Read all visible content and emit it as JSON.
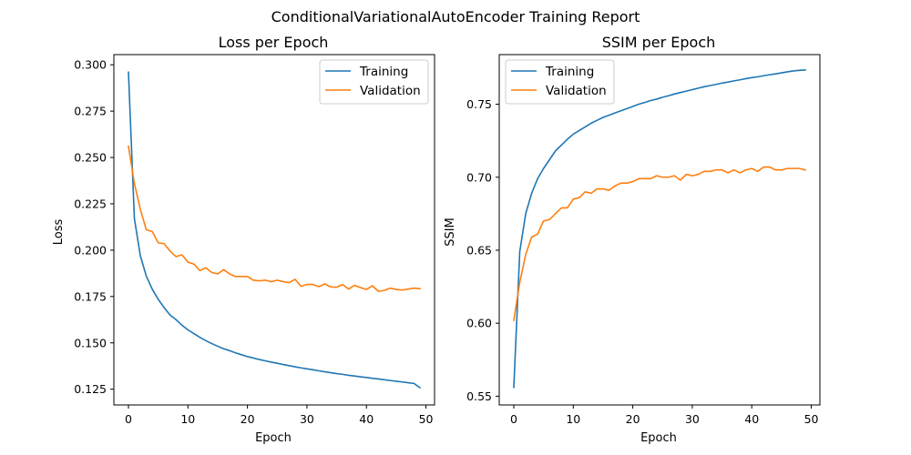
{
  "suptitle": "ConditionalVariationalAutoEncoder Training Report",
  "chart_data": [
    {
      "type": "line",
      "title": "Loss per Epoch",
      "xlabel": "Epoch",
      "ylabel": "Loss",
      "xlim": [
        -2.45,
        51.45
      ],
      "ylim": [
        0.1165,
        0.3055
      ],
      "xticks": [
        0,
        10,
        20,
        30,
        40,
        50
      ],
      "yticks": [
        0.125,
        0.15,
        0.175,
        0.2,
        0.225,
        0.25,
        0.275,
        0.3
      ],
      "ytick_labels": [
        "0.125",
        "0.150",
        "0.175",
        "0.200",
        "0.225",
        "0.250",
        "0.275",
        "0.300"
      ],
      "legend_position": "upper right",
      "x": [
        0,
        1,
        2,
        3,
        4,
        5,
        6,
        7,
        8,
        9,
        10,
        11,
        12,
        13,
        14,
        15,
        16,
        17,
        18,
        19,
        20,
        21,
        22,
        23,
        24,
        25,
        26,
        27,
        28,
        29,
        30,
        31,
        32,
        33,
        34,
        35,
        36,
        37,
        38,
        39,
        40,
        41,
        42,
        43,
        44,
        45,
        46,
        47,
        48,
        49
      ],
      "series": [
        {
          "name": "Training",
          "color": "#1f77b4",
          "values": [
            0.296,
            0.217,
            0.197,
            0.186,
            0.179,
            0.1735,
            0.169,
            0.165,
            0.1625,
            0.1595,
            0.157,
            0.155,
            0.153,
            0.1512,
            0.1496,
            0.1482,
            0.1468,
            0.1458,
            0.1446,
            0.1436,
            0.1426,
            0.1418,
            0.141,
            0.1403,
            0.1396,
            0.139,
            0.1383,
            0.1377,
            0.1371,
            0.1365,
            0.136,
            0.1355,
            0.1349,
            0.1344,
            0.1339,
            0.1334,
            0.133,
            0.1325,
            0.1321,
            0.1317,
            0.1313,
            0.1309,
            0.1305,
            0.1301,
            0.1297,
            0.1293,
            0.1289,
            0.1285,
            0.1281,
            0.1258
          ]
        },
        {
          "name": "Validation",
          "color": "#ff7f0e",
          "values": [
            0.256,
            0.236,
            0.222,
            0.211,
            0.21,
            0.204,
            0.2035,
            0.1995,
            0.1965,
            0.1975,
            0.1935,
            0.1925,
            0.189,
            0.1905,
            0.188,
            0.1872,
            0.1895,
            0.1872,
            0.1858,
            0.1858,
            0.1858,
            0.1838,
            0.1835,
            0.1838,
            0.183,
            0.1838,
            0.183,
            0.1825,
            0.1843,
            0.1805,
            0.1815,
            0.1815,
            0.1803,
            0.1818,
            0.1802,
            0.18,
            0.1815,
            0.179,
            0.181,
            0.1798,
            0.1788,
            0.1808,
            0.1778,
            0.1783,
            0.1795,
            0.1788,
            0.1785,
            0.179,
            0.1795,
            0.1792
          ]
        }
      ]
    },
    {
      "type": "line",
      "title": "SSIM per Epoch",
      "xlabel": "Epoch",
      "ylabel": "SSIM",
      "xlim": [
        -2.45,
        51.45
      ],
      "ylim": [
        0.544,
        0.784
      ],
      "xticks": [
        0,
        10,
        20,
        30,
        40,
        50
      ],
      "yticks": [
        0.55,
        0.6,
        0.65,
        0.7,
        0.75
      ],
      "ytick_labels": [
        "0.55",
        "0.60",
        "0.65",
        "0.70",
        "0.75"
      ],
      "legend_position": "upper left",
      "x": [
        0,
        1,
        2,
        3,
        4,
        5,
        6,
        7,
        8,
        9,
        10,
        11,
        12,
        13,
        14,
        15,
        16,
        17,
        18,
        19,
        20,
        21,
        22,
        23,
        24,
        25,
        26,
        27,
        28,
        29,
        30,
        31,
        32,
        33,
        34,
        35,
        36,
        37,
        38,
        39,
        40,
        41,
        42,
        43,
        44,
        45,
        46,
        47,
        48,
        49
      ],
      "series": [
        {
          "name": "Training",
          "color": "#1f77b4",
          "values": [
            0.556,
            0.649,
            0.675,
            0.689,
            0.699,
            0.706,
            0.712,
            0.718,
            0.722,
            0.726,
            0.7295,
            0.732,
            0.7345,
            0.737,
            0.739,
            0.741,
            0.7425,
            0.744,
            0.7455,
            0.747,
            0.7485,
            0.75,
            0.7512,
            0.7525,
            0.7535,
            0.7548,
            0.7558,
            0.757,
            0.758,
            0.759,
            0.76,
            0.761,
            0.762,
            0.7628,
            0.7636,
            0.7645,
            0.7652,
            0.766,
            0.7667,
            0.7675,
            0.7682,
            0.7688,
            0.7695,
            0.7702,
            0.7708,
            0.7715,
            0.7722,
            0.7728,
            0.7732,
            0.7735
          ]
        },
        {
          "name": "Validation",
          "color": "#ff7f0e",
          "values": [
            0.602,
            0.628,
            0.647,
            0.659,
            0.661,
            0.67,
            0.671,
            0.675,
            0.679,
            0.679,
            0.685,
            0.686,
            0.69,
            0.689,
            0.692,
            0.692,
            0.691,
            0.694,
            0.696,
            0.696,
            0.697,
            0.699,
            0.699,
            0.699,
            0.701,
            0.7,
            0.7,
            0.701,
            0.698,
            0.702,
            0.701,
            0.702,
            0.704,
            0.704,
            0.705,
            0.705,
            0.703,
            0.705,
            0.703,
            0.705,
            0.706,
            0.704,
            0.707,
            0.707,
            0.705,
            0.705,
            0.706,
            0.706,
            0.706,
            0.705
          ]
        }
      ]
    }
  ]
}
